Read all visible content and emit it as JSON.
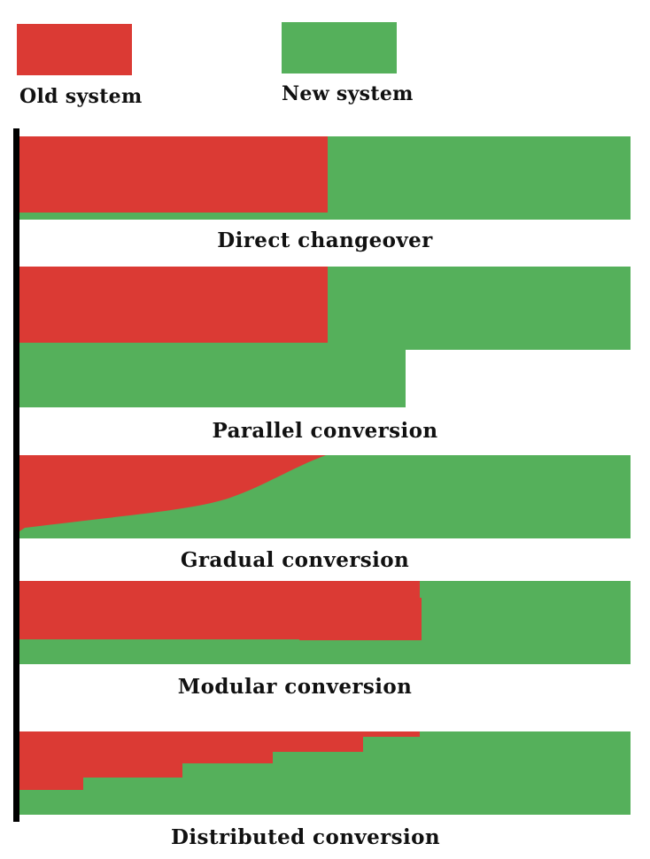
{
  "colors": {
    "old_system": "#db3a34",
    "new_system": "#55b05b",
    "axis": "#000000",
    "background": "#ffffff"
  },
  "legend": {
    "old_label": "Old system",
    "new_label": "New system"
  },
  "methods": [
    {
      "id": "direct",
      "label": "Direct changeover"
    },
    {
      "id": "parallel",
      "label": "Parallel conversion"
    },
    {
      "id": "gradual",
      "label": "Gradual conversion"
    },
    {
      "id": "modular",
      "label": "Modular conversion"
    },
    {
      "id": "distributed",
      "label": "Distributed conversion"
    }
  ]
}
